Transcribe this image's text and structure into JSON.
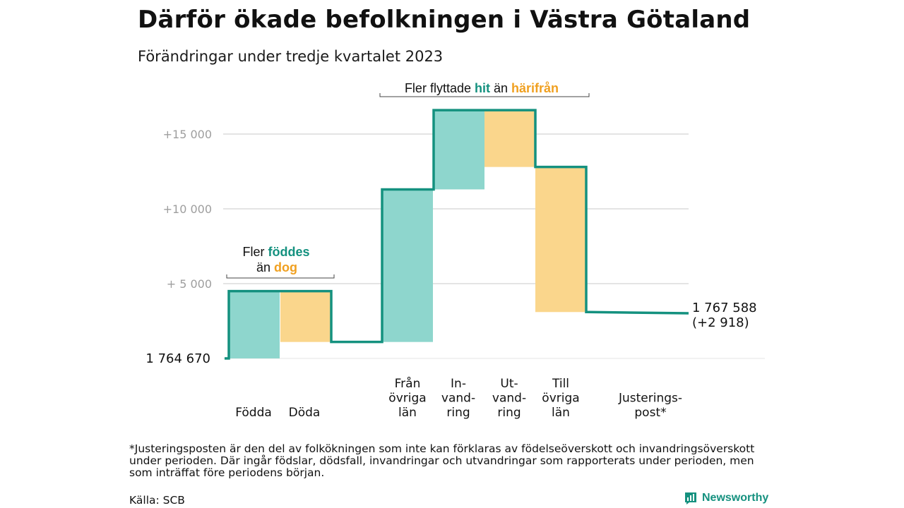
{
  "title": "Därför ökade befolkningen i Västra Götaland",
  "subtitle": "Förändringar under tredje kvartalet 2023",
  "footnote": "*Justeringsposten är den del av folkökningen som inte kan förklaras av födelseöverskott och invandringsöverskott under perioden. Där ingår födslar, dödsfall, invandringar och utvandringar som rapporterats under perioden, men som inträffat före periodens början.",
  "source": "Källa: SCB",
  "brand": "Newsworthy",
  "colors": {
    "increase": "#8ed6cd",
    "decrease": "#fad68c",
    "line": "#14917f",
    "grid": "#dcdcdc",
    "tick": "#9e9e9e",
    "accent_orange": "#f0a020"
  },
  "annotations": {
    "births": {
      "line1_prefix": "Fler ",
      "line1_word": "föddes",
      "line2_prefix": "än ",
      "line2_word": "dog"
    },
    "migration": {
      "prefix": "Fler flyttade ",
      "word1": "hit",
      "middle": " än ",
      "word2": "härifrån"
    }
  },
  "chart_data": {
    "type": "waterfall",
    "title": "Därför ökade befolkningen i Västra Götaland",
    "subtitle": "Förändringar under tredje kvartalet 2023",
    "start_value": 1764670,
    "start_label": "1  764   670",
    "end_value": 1767588,
    "end_label_line1": "1 767 588",
    "end_label_line2": "(+2 918)",
    "y_ticks": [
      {
        "value": 5000,
        "label": "+  5  000"
      },
      {
        "value": 10000,
        "label": "+10   000"
      },
      {
        "value": 15000,
        "label": "+15   000"
      }
    ],
    "ylim": [
      0,
      17500
    ],
    "grid": true,
    "steps": [
      {
        "category": "Födda",
        "label_lines": [
          "Födda"
        ],
        "change": 4500,
        "kind": "increase"
      },
      {
        "category": "Döda",
        "label_lines": [
          "Döda"
        ],
        "change": -3400,
        "kind": "decrease"
      },
      {
        "category": "Från övriga län",
        "label_lines": [
          "Från",
          "övriga",
          "län"
        ],
        "change": 10200,
        "kind": "increase"
      },
      {
        "category": "Invandring",
        "label_lines": [
          "In-",
          "vand-",
          "ring"
        ],
        "change": 5300,
        "kind": "increase"
      },
      {
        "category": "Utvandring",
        "label_lines": [
          "Ut-",
          "vand-",
          "ring"
        ],
        "change": -3800,
        "kind": "decrease"
      },
      {
        "category": "Till övriga län",
        "label_lines": [
          "Till",
          "övriga",
          "län"
        ],
        "change": -9700,
        "kind": "decrease"
      },
      {
        "category": "Justeringspost*",
        "label_lines": [
          "Justerings-",
          "post*"
        ],
        "change": -80,
        "kind": "adjustment"
      }
    ]
  }
}
